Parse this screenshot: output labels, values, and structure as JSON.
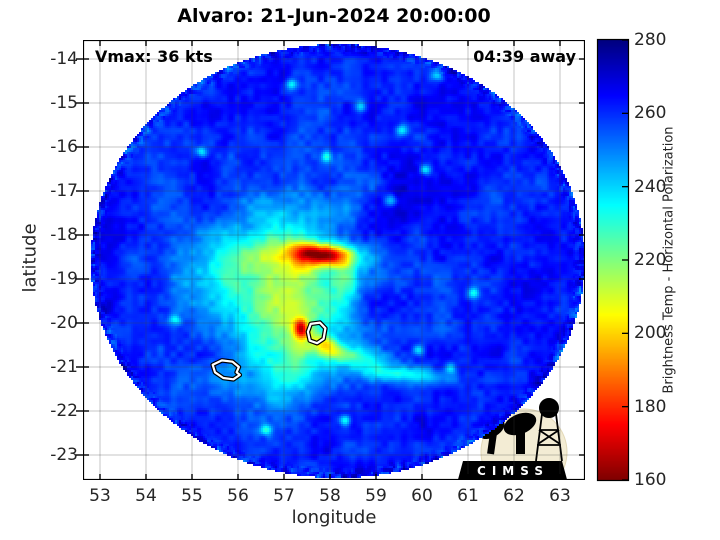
{
  "title": "Alvaro: 21-Jun-2024 20:00:00",
  "annotations": {
    "vmax": "Vmax: 36 kts",
    "eta": "04:39 away"
  },
  "axes": {
    "xlabel": "longitude",
    "ylabel": "latitude",
    "xticks": [
      53,
      54,
      55,
      56,
      57,
      58,
      59,
      60,
      61,
      62,
      63
    ],
    "yticks": [
      -14,
      -15,
      -16,
      -17,
      -18,
      -19,
      -20,
      -21,
      -22,
      -23
    ]
  },
  "colorbar": {
    "label": "Brightness Temp - Horizontal Polarization",
    "min": 160,
    "max": 280,
    "ticks": [
      280,
      260,
      240,
      220,
      200,
      180,
      160
    ]
  },
  "logo": {
    "text": "CIMSS"
  },
  "chart_data": {
    "type": "heatmap",
    "title": "Alvaro: 21-Jun-2024 20:00:00",
    "xlabel": "longitude",
    "ylabel": "latitude",
    "x_range": [
      52.63,
      63.54
    ],
    "y_range": [
      -23.57,
      -13.57
    ],
    "grid": true,
    "colormap": "jet_reversed",
    "value_label": "Brightness Temp - Horizontal Polarization",
    "value_range": [
      160,
      280
    ],
    "swath": {
      "center_lon": 58.15,
      "center_lat": -18.57,
      "radius_lon": 5.37,
      "radius_lat": 4.93,
      "background_K": 259
    },
    "features": [
      {
        "lon": 56.95,
        "lat": -19.35,
        "sx": 1.15,
        "sy": 1.2,
        "rot": 0,
        "amp": -26
      },
      {
        "lon": 57.0,
        "lat": -19.5,
        "sx": 0.55,
        "sy": 0.85,
        "rot": 10,
        "amp": -20
      },
      {
        "lon": 56.5,
        "lat": -18.3,
        "sx": 0.75,
        "sy": 0.45,
        "rot": 25,
        "amp": -11
      },
      {
        "lon": 57.8,
        "lat": -18.42,
        "sx": 0.5,
        "sy": 0.17,
        "rot": -5,
        "amp": -75
      },
      {
        "lon": 57.45,
        "lat": -18.75,
        "sx": 0.3,
        "sy": 0.22,
        "rot": 40,
        "amp": -16
      },
      {
        "lon": 58.3,
        "lat": -18.8,
        "sx": 0.18,
        "sy": 0.45,
        "rot": 10,
        "amp": -16
      },
      {
        "lon": 57.35,
        "lat": -20.1,
        "sx": 0.11,
        "sy": 0.16,
        "rot": 0,
        "amp": -50
      },
      {
        "lon": 58.35,
        "lat": -20.7,
        "sx": 0.6,
        "sy": 0.16,
        "rot": -10,
        "amp": -30
      },
      {
        "lon": 59.7,
        "lat": -21.15,
        "sx": 0.8,
        "sy": 0.14,
        "rot": -5,
        "amp": -26
      },
      {
        "lon": 57.85,
        "lat": -20.42,
        "sx": 0.28,
        "sy": 0.13,
        "rot": -30,
        "amp": -28
      },
      {
        "lon": 55.5,
        "lat": -18.7,
        "sx": 0.8,
        "sy": 0.6,
        "rot": 0,
        "amp": -10
      },
      {
        "lon": 56.4,
        "lat": -21.3,
        "sx": 0.95,
        "sy": 0.4,
        "rot": 10,
        "amp": -9
      },
      {
        "lon": 57.3,
        "lat": -17.35,
        "sx": 0.85,
        "sy": 0.3,
        "rot": -8,
        "amp": -8
      },
      {
        "lon": 57.0,
        "lat": -20.9,
        "sx": 0.45,
        "sy": 0.5,
        "rot": 0,
        "amp": -10
      },
      {
        "lon": 58.0,
        "lat": -19.6,
        "sx": 0.25,
        "sy": 0.45,
        "rot": -20,
        "amp": -10
      },
      {
        "lon": 59.0,
        "lat": -19.5,
        "sx": 0.55,
        "sy": 0.4,
        "rot": 0,
        "amp": 7
      },
      {
        "lon": 60.0,
        "lat": -17.2,
        "sx": 0.9,
        "sy": 0.55,
        "rot": 30,
        "amp": 8
      }
    ],
    "speckles": [
      [
        58.65,
        -15.05
      ],
      [
        57.15,
        -14.55
      ],
      [
        60.3,
        -14.35
      ],
      [
        60.05,
        -16.5
      ],
      [
        59.3,
        -17.2
      ],
      [
        61.1,
        -19.3
      ],
      [
        59.9,
        -20.6
      ],
      [
        58.3,
        -22.2
      ],
      [
        55.2,
        -16.1
      ],
      [
        54.6,
        -19.9
      ],
      [
        57.9,
        -16.2
      ],
      [
        60.6,
        -21.0
      ],
      [
        56.6,
        -22.4
      ],
      [
        59.55,
        -15.6
      ]
    ],
    "speckle_amp": -26,
    "speckle_sigma": 0.09,
    "islands": [
      {
        "name": "mauritius",
        "polygon": [
          [
            57.58,
            -20.02
          ],
          [
            57.78,
            -19.99
          ],
          [
            57.9,
            -20.12
          ],
          [
            57.86,
            -20.36
          ],
          [
            57.72,
            -20.46
          ],
          [
            57.56,
            -20.4
          ],
          [
            57.52,
            -20.2
          ]
        ]
      },
      {
        "name": "reunion",
        "polygon": [
          [
            55.45,
            -20.95
          ],
          [
            55.65,
            -20.85
          ],
          [
            55.88,
            -20.88
          ],
          [
            56.02,
            -21.0
          ],
          [
            55.97,
            -21.12
          ],
          [
            56.04,
            -21.18
          ],
          [
            55.9,
            -21.28
          ],
          [
            55.68,
            -21.25
          ],
          [
            55.5,
            -21.12
          ]
        ]
      }
    ]
  }
}
